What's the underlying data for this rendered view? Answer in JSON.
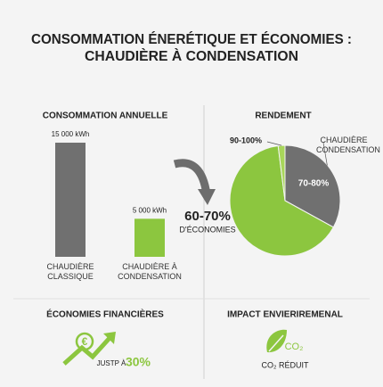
{
  "title": "CONSOMMATION ÉNERÉTIQUE ET ÉCONOMIES :",
  "subtitle": "CHAUDIÈRE À CONDENSATION",
  "chart_data": [
    {
      "type": "bar",
      "title": "CONSOMMATION ANNUELLE",
      "categories": [
        "CHAUDIÈRE CLASSIQUE",
        "CHAUDIÈRE À CONDENSATION"
      ],
      "values": [
        15000,
        5000
      ],
      "value_labels": [
        "15 000 kWh",
        "5 000 kWh"
      ],
      "colors": [
        "#707070",
        "#8cc63f"
      ],
      "annotation": {
        "value": "60-70%",
        "text": "D'ÉCONOMIES"
      }
    },
    {
      "type": "pie",
      "title": "RENDEMENT",
      "categories": [
        "CHAUDIÈRE CONDENSATION",
        null,
        "90-100%"
      ],
      "values": [
        33,
        65,
        2
      ],
      "inner_labels": [
        "70-80%",
        null,
        null
      ],
      "colors": [
        "#707070",
        "#8cc63f",
        "#a8d65a"
      ]
    }
  ],
  "savings": {
    "title": "ÉCONOMIES FINANCIÈRES",
    "icon": "€",
    "text": "JUSTP À",
    "value": "30%"
  },
  "impact": {
    "title": "IMPACT ENVIERIREMENAL",
    "icon": "CO₂",
    "text": "CO₂ RÉDUIT"
  }
}
